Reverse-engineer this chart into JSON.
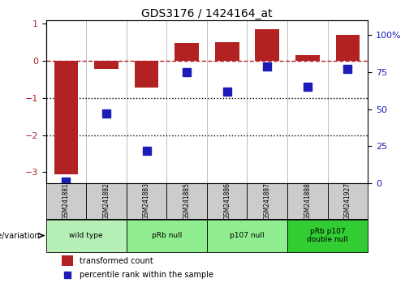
{
  "title": "GDS3176 / 1424164_at",
  "samples": [
    "GSM241881",
    "GSM241882",
    "GSM241883",
    "GSM241885",
    "GSM241886",
    "GSM241887",
    "GSM241888",
    "GSM241927"
  ],
  "red_values": [
    -3.05,
    -0.22,
    -0.72,
    0.48,
    0.5,
    0.85,
    0.15,
    0.7
  ],
  "blue_values": [
    1.0,
    47.0,
    22.0,
    75.0,
    62.0,
    79.0,
    65.0,
    77.0
  ],
  "group_data": [
    {
      "label": "wild type",
      "start": 0,
      "end": 1,
      "color": "#b6f0b6"
    },
    {
      "label": "pRb null",
      "start": 2,
      "end": 3,
      "color": "#90EE90"
    },
    {
      "label": "p107 null",
      "start": 4,
      "end": 5,
      "color": "#90EE90"
    },
    {
      "label": "pRb p107\ndouble null",
      "start": 6,
      "end": 7,
      "color": "#32CD32"
    }
  ],
  "ylim_left": [
    -3.3,
    1.1
  ],
  "ylim_right": [
    0,
    110
  ],
  "yticks_left": [
    -3,
    -2,
    -1,
    0,
    1
  ],
  "yticks_right": [
    0,
    25,
    50,
    75,
    100
  ],
  "ytick_labels_right": [
    "0",
    "25",
    "50",
    "75",
    "100%"
  ],
  "red_color": "#B22222",
  "blue_color": "#1C1CB8",
  "bar_width": 0.6,
  "blue_marker_size": 7,
  "dotted_lines": [
    -1,
    -2
  ],
  "legend_labels": [
    "transformed count",
    "percentile rank within the sample"
  ]
}
